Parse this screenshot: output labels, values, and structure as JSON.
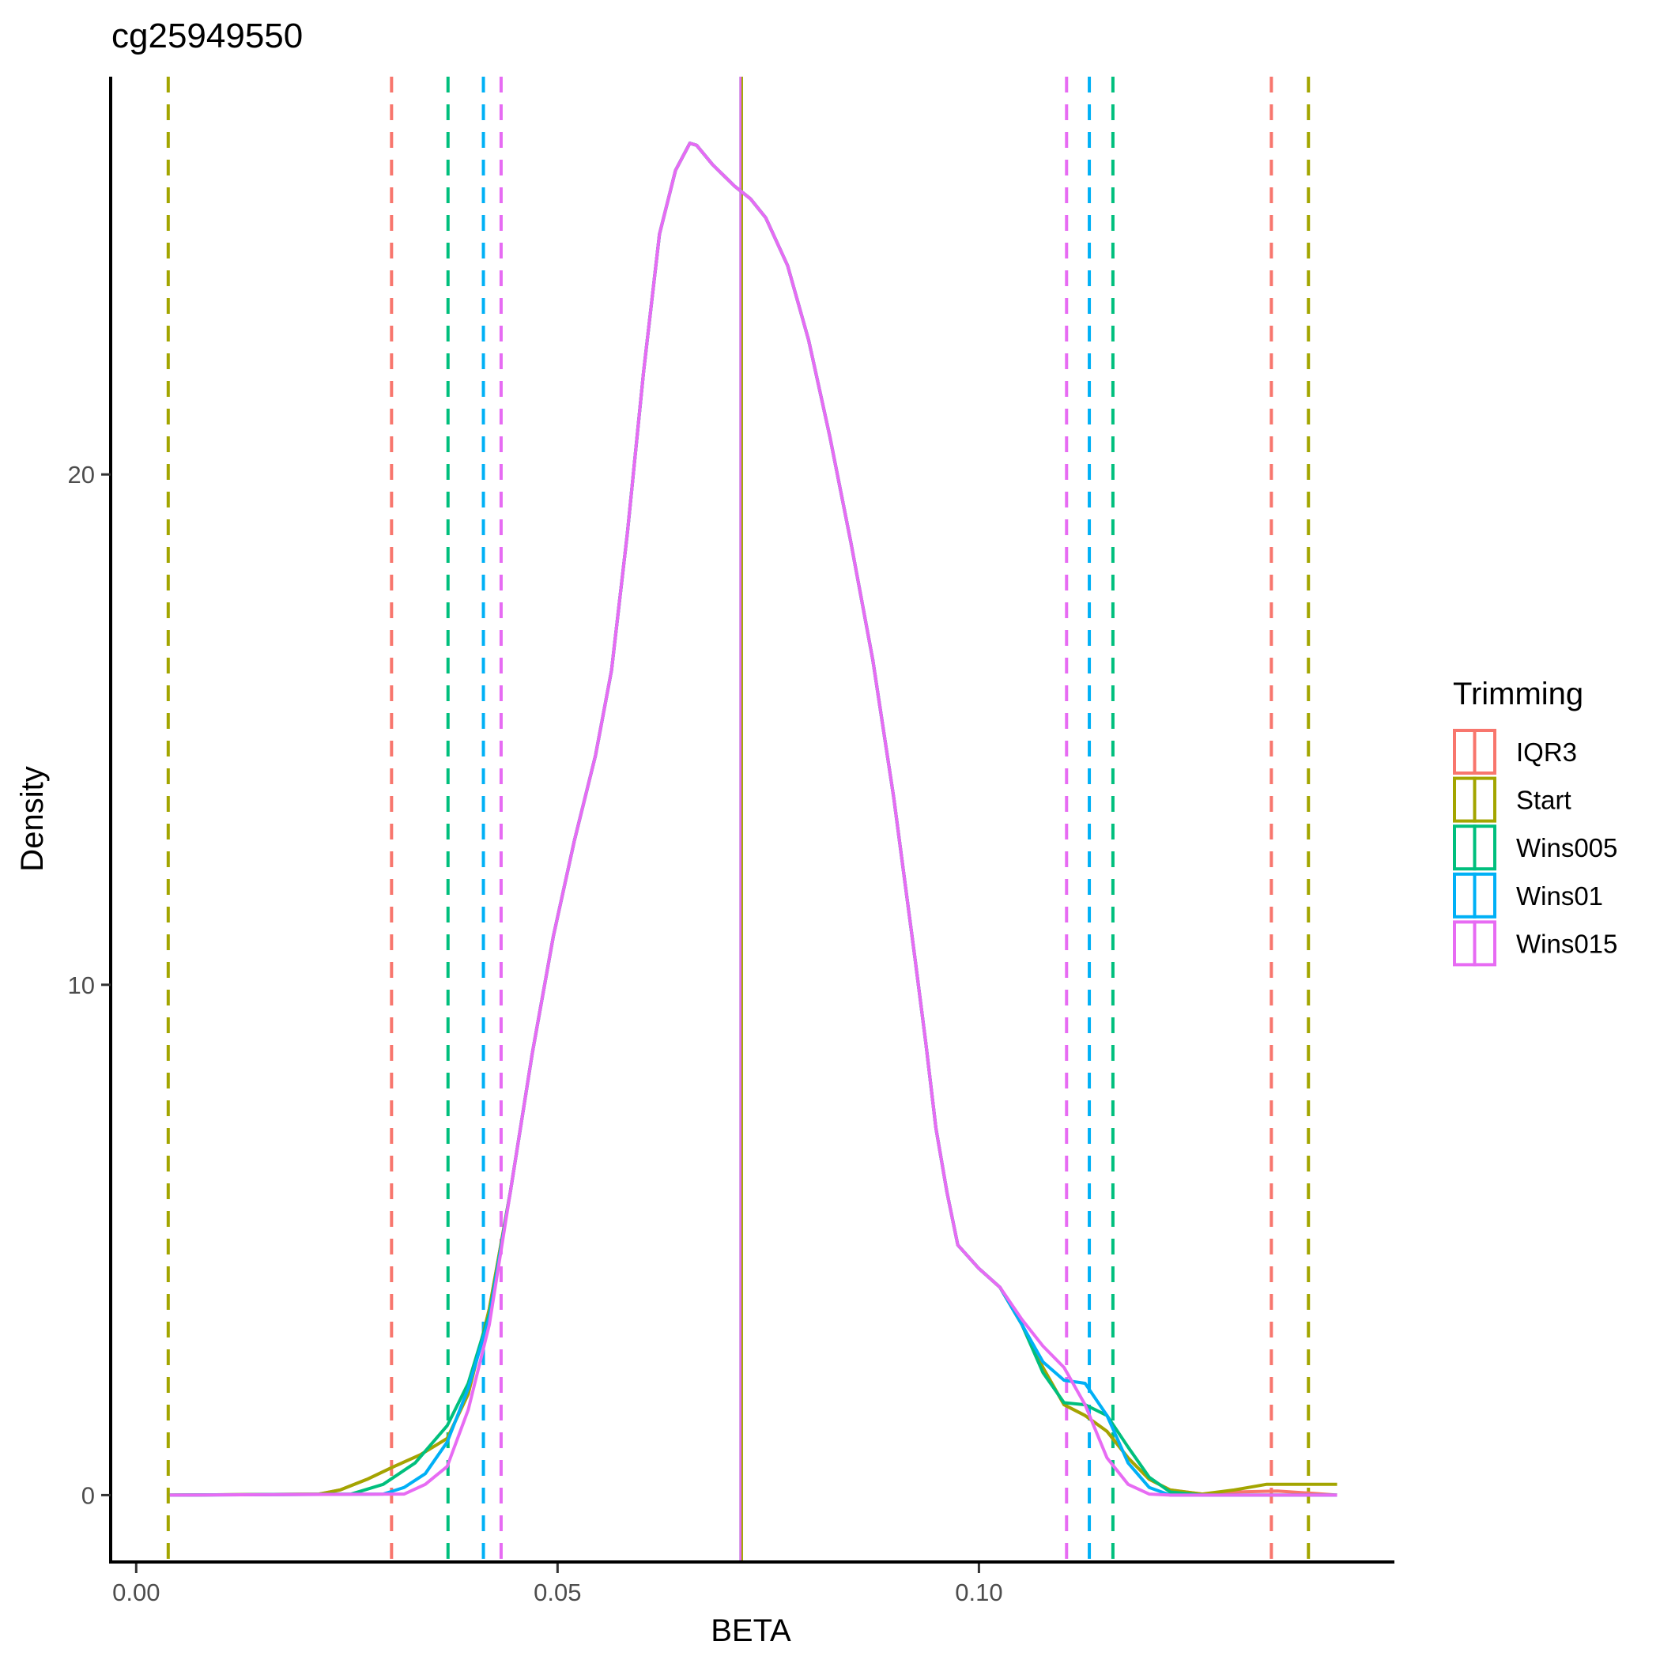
{
  "chart_data": {
    "type": "line",
    "title": "cg25949550",
    "xlabel": "BETA",
    "ylabel": "Density",
    "xlim": [
      -0.003,
      0.149
    ],
    "ylim": [
      -1.3,
      27.9
    ],
    "x_ticks": [
      {
        "value": 0.0,
        "label": "0.00"
      },
      {
        "value": 0.05,
        "label": "0.05"
      },
      {
        "value": 0.1,
        "label": "0.10"
      }
    ],
    "y_ticks": [
      {
        "value": 0,
        "label": "0"
      },
      {
        "value": 10,
        "label": "10"
      },
      {
        "value": 20,
        "label": "20"
      }
    ],
    "grid": false,
    "legend": {
      "title": "Trimming",
      "placement": "right"
    },
    "core": [
      [
        0.0444,
        5.94
      ],
      [
        0.047,
        8.66
      ],
      [
        0.0495,
        10.95
      ],
      [
        0.052,
        12.83
      ],
      [
        0.0545,
        14.49
      ],
      [
        0.0564,
        16.16
      ],
      [
        0.0583,
        18.87
      ],
      [
        0.0602,
        22.0
      ],
      [
        0.0621,
        24.71
      ],
      [
        0.064,
        25.96
      ],
      [
        0.0657,
        26.49
      ],
      [
        0.0665,
        26.45
      ],
      [
        0.0684,
        26.07
      ],
      [
        0.071,
        25.65
      ],
      [
        0.0729,
        25.4
      ],
      [
        0.0747,
        25.03
      ],
      [
        0.0773,
        24.09
      ],
      [
        0.0798,
        22.63
      ],
      [
        0.0823,
        20.75
      ],
      [
        0.0848,
        18.67
      ],
      [
        0.0874,
        16.37
      ],
      [
        0.0899,
        13.66
      ],
      [
        0.0924,
        10.53
      ],
      [
        0.0937,
        8.86
      ],
      [
        0.0949,
        7.19
      ],
      [
        0.0962,
        5.94
      ],
      [
        0.0975,
        4.9
      ],
      [
        0.1,
        4.44
      ],
      [
        0.1025,
        4.07
      ]
    ],
    "series": [
      {
        "name": "IQR3",
        "color": "#F8766D",
        "mean": 0.0717,
        "lower": 0.0303,
        "upper": 0.1347,
        "left": [
          [
            0.004,
            0
          ],
          [
            0.0217,
            0.02
          ],
          [
            0.0242,
            0.1
          ],
          [
            0.0274,
            0.31
          ],
          [
            0.0306,
            0.56
          ],
          [
            0.0337,
            0.79
          ],
          [
            0.0369,
            1.11
          ],
          [
            0.0394,
            1.98
          ],
          [
            0.0419,
            3.65
          ]
        ],
        "right": [
          [
            0.1051,
            3.34
          ],
          [
            0.1076,
            2.5
          ],
          [
            0.1101,
            1.77
          ],
          [
            0.1126,
            1.56
          ],
          [
            0.1152,
            1.25
          ],
          [
            0.1177,
            0.73
          ],
          [
            0.1202,
            0.31
          ],
          [
            0.1227,
            0.1
          ],
          [
            0.1265,
            0.02
          ],
          [
            0.1303,
            0.06
          ],
          [
            0.1354,
            0.08
          ],
          [
            0.1391,
            0.04
          ],
          [
            0.1425,
            0
          ]
        ]
      },
      {
        "name": "Start",
        "color": "#A3A500",
        "mean": 0.0717,
        "lower": 0.0038,
        "upper": 0.1391,
        "left": [
          [
            0.004,
            0
          ],
          [
            0.0217,
            0.02
          ],
          [
            0.0242,
            0.1
          ],
          [
            0.0274,
            0.31
          ],
          [
            0.0306,
            0.56
          ],
          [
            0.0337,
            0.79
          ],
          [
            0.0369,
            1.11
          ],
          [
            0.0394,
            1.98
          ],
          [
            0.0419,
            3.65
          ]
        ],
        "right": [
          [
            0.1051,
            3.34
          ],
          [
            0.1076,
            2.5
          ],
          [
            0.1101,
            1.77
          ],
          [
            0.1126,
            1.56
          ],
          [
            0.1152,
            1.25
          ],
          [
            0.1177,
            0.73
          ],
          [
            0.1202,
            0.31
          ],
          [
            0.1227,
            0.1
          ],
          [
            0.1265,
            0.02
          ],
          [
            0.1303,
            0.1
          ],
          [
            0.1341,
            0.21
          ],
          [
            0.1391,
            0.21
          ],
          [
            0.1425,
            0.21
          ]
        ]
      },
      {
        "name": "Wins005",
        "color": "#00BF7D",
        "mean": 0.0717,
        "lower": 0.037,
        "upper": 0.1159,
        "left": [
          [
            0.004,
            0
          ],
          [
            0.0255,
            0.02
          ],
          [
            0.0293,
            0.21
          ],
          [
            0.0331,
            0.63
          ],
          [
            0.0369,
            1.36
          ],
          [
            0.0394,
            2.19
          ],
          [
            0.0419,
            3.55
          ]
        ],
        "right": [
          [
            0.1051,
            3.34
          ],
          [
            0.1076,
            2.4
          ],
          [
            0.1101,
            1.81
          ],
          [
            0.1126,
            1.77
          ],
          [
            0.1152,
            1.56
          ],
          [
            0.1177,
            0.94
          ],
          [
            0.1202,
            0.35
          ],
          [
            0.1227,
            0.06
          ],
          [
            0.1265,
            0
          ],
          [
            0.1425,
            0
          ]
        ]
      },
      {
        "name": "Wins01",
        "color": "#00B0F6",
        "mean": 0.0717,
        "lower": 0.0412,
        "upper": 0.1131,
        "left": [
          [
            0.004,
            0
          ],
          [
            0.0293,
            0.02
          ],
          [
            0.0318,
            0.15
          ],
          [
            0.0343,
            0.42
          ],
          [
            0.0369,
            1.04
          ],
          [
            0.0394,
            2.09
          ],
          [
            0.0419,
            3.48
          ]
        ],
        "right": [
          [
            0.1051,
            3.34
          ],
          [
            0.1076,
            2.61
          ],
          [
            0.1101,
            2.25
          ],
          [
            0.1126,
            2.19
          ],
          [
            0.1152,
            1.56
          ],
          [
            0.1177,
            0.63
          ],
          [
            0.1202,
            0.15
          ],
          [
            0.1227,
            0
          ],
          [
            0.1425,
            0
          ]
        ]
      },
      {
        "name": "Wins015",
        "color": "#E76BF3",
        "mean": 0.0717,
        "lower": 0.0433,
        "upper": 0.1104,
        "left": [
          [
            0.004,
            0
          ],
          [
            0.0318,
            0.02
          ],
          [
            0.0343,
            0.21
          ],
          [
            0.0369,
            0.56
          ],
          [
            0.0394,
            1.67
          ],
          [
            0.0419,
            3.34
          ]
        ],
        "right": [
          [
            0.1051,
            3.44
          ],
          [
            0.1076,
            2.92
          ],
          [
            0.1101,
            2.5
          ],
          [
            0.1126,
            1.77
          ],
          [
            0.1152,
            0.73
          ],
          [
            0.1177,
            0.21
          ],
          [
            0.1202,
            0.02
          ],
          [
            0.1227,
            0
          ],
          [
            0.1425,
            0
          ]
        ]
      }
    ]
  }
}
